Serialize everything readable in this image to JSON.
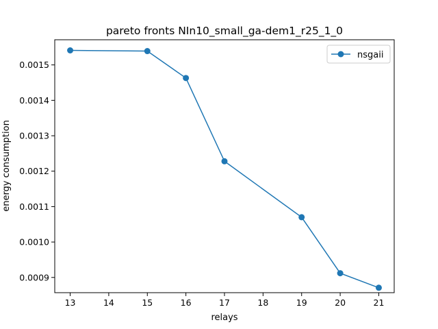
{
  "chart_data": {
    "type": "line",
    "title": "pareto fronts NIn10_small_ga-dem1_r25_1_0",
    "xlabel": "relays",
    "ylabel": "energy consumption",
    "x_ticks": [
      13,
      14,
      15,
      16,
      17,
      18,
      19,
      20,
      21
    ],
    "y_ticks": [
      0.0009,
      0.001,
      0.0011,
      0.0012,
      0.0013,
      0.0014,
      0.0015
    ],
    "y_tick_labels": [
      "0.0009",
      "0.0010",
      "0.0011",
      "0.0012",
      "0.0013",
      "0.0014",
      "0.0015"
    ],
    "xlim": [
      12.6,
      21.4
    ],
    "ylim": [
      0.000857,
      0.001571
    ],
    "grid": false,
    "legend_position": "top-right",
    "series": [
      {
        "name": "nsgaii",
        "color": "#1f77b4",
        "marker": "circle",
        "x": [
          13,
          15,
          16,
          17,
          19,
          20,
          21
        ],
        "y": [
          0.001541,
          0.001539,
          0.001463,
          0.001228,
          0.00107,
          0.000912,
          0.000871
        ]
      }
    ]
  }
}
